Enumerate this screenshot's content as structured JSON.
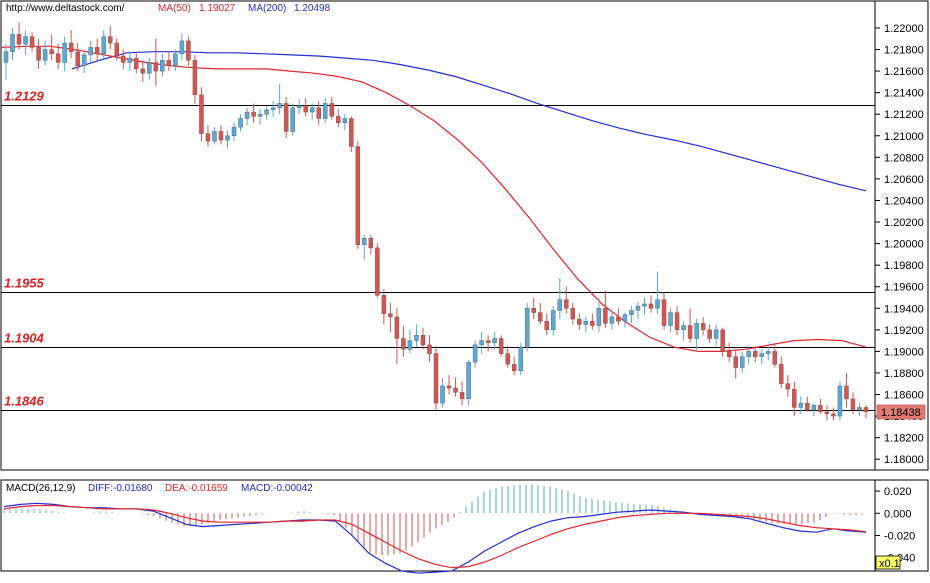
{
  "header": {
    "url": "http://www.deltastock.com/",
    "ma50_label": "MA(50)",
    "ma50_value": "1.19027",
    "ma200_label": "MA(200)",
    "ma200_value": "1.20498"
  },
  "colors": {
    "bull_candle": "#5aa9d6",
    "bear_candle": "#d9534f",
    "ma50": "#e8242a",
    "ma200": "#1f2fd8",
    "level_label": "#e02020",
    "price_tag_bg": "#e07a74",
    "macd_diff": "#1f2fd8",
    "macd_dea": "#e8242a",
    "hist_pos": "#5aa9d6",
    "hist_neg": "#d9534f"
  },
  "price_axis": {
    "ticks": [
      "1.22000",
      "1.21800",
      "1.21600",
      "1.21400",
      "1.21200",
      "1.21000",
      "1.20800",
      "1.20600",
      "1.20400",
      "1.20200",
      "1.20000",
      "1.19800",
      "1.19600",
      "1.19400",
      "1.19200",
      "1.19000",
      "1.18800",
      "1.18600",
      "1.18400",
      "1.18200",
      "1.18000"
    ],
    "current_price": "1.18438"
  },
  "levels": [
    {
      "label": "1.2129",
      "value": 1.2129
    },
    {
      "label": "1.1955",
      "value": 1.1955
    },
    {
      "label": "1.1904",
      "value": 1.1904
    },
    {
      "label": "1.1846",
      "value": 1.1846
    }
  ],
  "macd_panel": {
    "title": "MACD(26,12,9)",
    "diff_text": "DIFF:-0.01680",
    "dea_text": "DEA:-0.01659",
    "macd_text": "MACD:-0.00042",
    "ticks": [
      "0.020",
      "0.000",
      "-0.020",
      "-0.040"
    ],
    "scale_badge": "x0.1"
  },
  "chart_data": [
    {
      "type": "candlestick",
      "title": "",
      "ylim": [
        1.179,
        1.2225
      ],
      "candles": [
        [
          1.2168,
          1.2185,
          1.2152,
          1.2178
        ],
        [
          1.2178,
          1.22,
          1.217,
          1.2194
        ],
        [
          1.2194,
          1.2205,
          1.218,
          1.2185
        ],
        [
          1.2185,
          1.2198,
          1.2175,
          1.2192
        ],
        [
          1.2192,
          1.2196,
          1.2178,
          1.2182
        ],
        [
          1.2182,
          1.219,
          1.2162,
          1.217
        ],
        [
          1.217,
          1.2188,
          1.2165,
          1.218
        ],
        [
          1.218,
          1.2194,
          1.217,
          1.2176
        ],
        [
          1.2176,
          1.2185,
          1.2162,
          1.2168
        ],
        [
          1.2168,
          1.2192,
          1.216,
          1.2186
        ],
        [
          1.2186,
          1.2198,
          1.2172,
          1.2178
        ],
        [
          1.2178,
          1.2186,
          1.216,
          1.2165
        ],
        [
          1.2165,
          1.218,
          1.2158,
          1.2175
        ],
        [
          1.2175,
          1.2188,
          1.2168,
          1.2182
        ],
        [
          1.2182,
          1.219,
          1.217,
          1.2176
        ],
        [
          1.2176,
          1.2198,
          1.2172,
          1.2192
        ],
        [
          1.2192,
          1.2202,
          1.218,
          1.2186
        ],
        [
          1.2186,
          1.219,
          1.217,
          1.2174
        ],
        [
          1.2174,
          1.218,
          1.2162,
          1.2168
        ],
        [
          1.2168,
          1.2178,
          1.216,
          1.2172
        ],
        [
          1.2172,
          1.2178,
          1.2158,
          1.2162
        ],
        [
          1.2162,
          1.217,
          1.215,
          1.2158
        ],
        [
          1.2158,
          1.2172,
          1.2152,
          1.2168
        ],
        [
          1.2168,
          1.219,
          1.2146,
          1.216
        ],
        [
          1.216,
          1.2176,
          1.2155,
          1.217
        ],
        [
          1.217,
          1.2178,
          1.216,
          1.2165
        ],
        [
          1.2165,
          1.218,
          1.216,
          1.2176
        ],
        [
          1.2176,
          1.2195,
          1.217,
          1.2188
        ],
        [
          1.2188,
          1.2192,
          1.2165,
          1.217
        ],
        [
          1.217,
          1.2175,
          1.213,
          1.2138
        ],
        [
          1.2138,
          1.2145,
          1.2095,
          1.2102
        ],
        [
          1.2102,
          1.211,
          1.209,
          1.2095
        ],
        [
          1.2095,
          1.2108,
          1.2092,
          1.2104
        ],
        [
          1.2104,
          1.211,
          1.2092,
          1.2096
        ],
        [
          1.2096,
          1.2105,
          1.2088,
          1.21
        ],
        [
          1.21,
          1.2112,
          1.2095,
          1.2108
        ],
        [
          1.2108,
          1.212,
          1.2104,
          1.2116
        ],
        [
          1.2116,
          1.2126,
          1.211,
          1.2122
        ],
        [
          1.2122,
          1.213,
          1.2112,
          1.2118
        ],
        [
          1.2118,
          1.2125,
          1.211,
          1.212
        ],
        [
          1.212,
          1.2128,
          1.2115,
          1.2124
        ],
        [
          1.2124,
          1.2132,
          1.2118,
          1.2126
        ],
        [
          1.2126,
          1.2148,
          1.212,
          1.213
        ],
        [
          1.213,
          1.2136,
          1.2098,
          1.2104
        ],
        [
          1.2104,
          1.213,
          1.21,
          1.2126
        ],
        [
          1.2126,
          1.2134,
          1.212,
          1.2128
        ],
        [
          1.2128,
          1.2135,
          1.2118,
          1.2122
        ],
        [
          1.2122,
          1.213,
          1.2115,
          1.2126
        ],
        [
          1.2126,
          1.2132,
          1.211,
          1.2116
        ],
        [
          1.2116,
          1.2135,
          1.2112,
          1.213
        ],
        [
          1.213,
          1.2136,
          1.2115,
          1.2118
        ],
        [
          1.2118,
          1.2125,
          1.2108,
          1.2112
        ],
        [
          1.2112,
          1.212,
          1.2105,
          1.2116
        ],
        [
          1.2116,
          1.2118,
          1.2085,
          1.209
        ],
        [
          1.209,
          1.2095,
          1.1995,
          1.1999
        ],
        [
          1.1999,
          1.2008,
          1.1985,
          1.2005
        ],
        [
          1.2005,
          1.2008,
          1.199,
          1.1996
        ],
        [
          1.1996,
          1.2,
          1.195,
          1.1952
        ],
        [
          1.1952,
          1.1958,
          1.1925,
          1.1935
        ],
        [
          1.1935,
          1.1945,
          1.1918,
          1.1932
        ],
        [
          1.1932,
          1.194,
          1.1888,
          1.1912
        ],
        [
          1.1912,
          1.1924,
          1.1895,
          1.1902
        ],
        [
          1.1902,
          1.192,
          1.1898,
          1.191
        ],
        [
          1.191,
          1.1925,
          1.1904,
          1.1915
        ],
        [
          1.1915,
          1.1922,
          1.1902,
          1.1906
        ],
        [
          1.1906,
          1.1915,
          1.189,
          1.1898
        ],
        [
          1.1898,
          1.1905,
          1.1845,
          1.1852
        ],
        [
          1.1852,
          1.1875,
          1.1848,
          1.1868
        ],
        [
          1.1868,
          1.1878,
          1.186,
          1.1866
        ],
        [
          1.1866,
          1.1876,
          1.1858,
          1.1862
        ],
        [
          1.1862,
          1.1872,
          1.185,
          1.1856
        ],
        [
          1.1856,
          1.1892,
          1.185,
          1.189
        ],
        [
          1.189,
          1.191,
          1.1885,
          1.1906
        ],
        [
          1.1906,
          1.1918,
          1.1898,
          1.191
        ],
        [
          1.191,
          1.1915,
          1.19,
          1.1908
        ],
        [
          1.1908,
          1.1918,
          1.1902,
          1.1912
        ],
        [
          1.1912,
          1.1915,
          1.1895,
          1.1898
        ],
        [
          1.1898,
          1.1905,
          1.1885,
          1.1888
        ],
        [
          1.1888,
          1.1895,
          1.1878,
          1.1882
        ],
        [
          1.1882,
          1.1908,
          1.1878,
          1.1904
        ],
        [
          1.1904,
          1.1945,
          1.19,
          1.194
        ],
        [
          1.194,
          1.195,
          1.193,
          1.1936
        ],
        [
          1.1936,
          1.1945,
          1.1925,
          1.1928
        ],
        [
          1.1928,
          1.1935,
          1.1915,
          1.192
        ],
        [
          1.192,
          1.1942,
          1.1915,
          1.1938
        ],
        [
          1.1938,
          1.1968,
          1.193,
          1.1948
        ],
        [
          1.1948,
          1.196,
          1.1935,
          1.194
        ],
        [
          1.194,
          1.1945,
          1.1925,
          1.193
        ],
        [
          1.193,
          1.1935,
          1.192,
          1.1925
        ],
        [
          1.1925,
          1.1932,
          1.1918,
          1.1928
        ],
        [
          1.1928,
          1.1935,
          1.192,
          1.1924
        ],
        [
          1.1924,
          1.195,
          1.1918,
          1.194
        ],
        [
          1.194,
          1.1956,
          1.1922,
          1.1926
        ],
        [
          1.1926,
          1.1938,
          1.192,
          1.1932
        ],
        [
          1.1932,
          1.194,
          1.1924,
          1.1928
        ],
        [
          1.1928,
          1.1936,
          1.1922,
          1.1934
        ],
        [
          1.1934,
          1.1942,
          1.1926,
          1.1938
        ],
        [
          1.1938,
          1.1946,
          1.193,
          1.1942
        ],
        [
          1.1942,
          1.195,
          1.1934,
          1.1944
        ],
        [
          1.1944,
          1.1952,
          1.1936,
          1.194
        ],
        [
          1.194,
          1.1974,
          1.1935,
          1.1948
        ],
        [
          1.1948,
          1.1955,
          1.192,
          1.1924
        ],
        [
          1.1924,
          1.194,
          1.1918,
          1.1936
        ],
        [
          1.1936,
          1.1942,
          1.1915,
          1.192
        ],
        [
          1.192,
          1.1928,
          1.191,
          1.1924
        ],
        [
          1.1924,
          1.194,
          1.1908,
          1.1912
        ],
        [
          1.1912,
          1.193,
          1.19,
          1.1926
        ],
        [
          1.1926,
          1.1932,
          1.1915,
          1.192
        ],
        [
          1.192,
          1.1925,
          1.1908,
          1.1912
        ],
        [
          1.1912,
          1.1925,
          1.1905,
          1.192
        ],
        [
          1.192,
          1.1922,
          1.1895,
          1.19
        ],
        [
          1.19,
          1.1908,
          1.189,
          1.1895
        ],
        [
          1.1895,
          1.1902,
          1.1875,
          1.1885
        ],
        [
          1.1885,
          1.19,
          1.188,
          1.1895
        ],
        [
          1.1895,
          1.1905,
          1.1888,
          1.19
        ],
        [
          1.19,
          1.1905,
          1.189,
          1.1895
        ],
        [
          1.1895,
          1.1902,
          1.1888,
          1.1898
        ],
        [
          1.1898,
          1.1905,
          1.1892,
          1.19
        ],
        [
          1.19,
          1.1906,
          1.1885,
          1.1888
        ],
        [
          1.1888,
          1.1895,
          1.1866,
          1.187
        ],
        [
          1.187,
          1.1878,
          1.1858,
          1.1865
        ],
        [
          1.1865,
          1.1872,
          1.184,
          1.1848
        ],
        [
          1.1848,
          1.1858,
          1.1842,
          1.1852
        ],
        [
          1.1852,
          1.1858,
          1.1844,
          1.1846
        ],
        [
          1.1846,
          1.1852,
          1.184,
          1.185
        ],
        [
          1.185,
          1.1856,
          1.1842,
          1.1844
        ],
        [
          1.1844,
          1.185,
          1.1836,
          1.1842
        ],
        [
          1.1842,
          1.1848,
          1.1836,
          1.184
        ],
        [
          1.184,
          1.1872,
          1.1836,
          1.1868
        ],
        [
          1.1868,
          1.188,
          1.1848,
          1.1856
        ],
        [
          1.1856,
          1.1862,
          1.1842,
          1.1846
        ],
        [
          1.1846,
          1.1852,
          1.184,
          1.1848
        ],
        [
          1.1848,
          1.185,
          1.1838,
          1.1844
        ]
      ],
      "ma50": [
        1.2182,
        1.2183,
        1.2183,
        1.218,
        1.2176,
        1.2172,
        1.2168,
        1.2165,
        1.2163,
        1.2162,
        1.2162,
        1.2162,
        1.216,
        1.2158,
        1.2155,
        1.215,
        1.214,
        1.2128,
        1.2114,
        1.2096,
        1.2075,
        1.205,
        1.2023,
        1.1994,
        1.1967,
        1.1944,
        1.1927,
        1.1913,
        1.1904,
        1.19,
        1.19,
        1.1902,
        1.1906,
        1.191,
        1.1911,
        1.191,
        1.1904
      ],
      "ma200": [
        1.2162,
        1.217,
        1.2177,
        1.2178,
        1.2178,
        1.2177,
        1.2177,
        1.2176,
        1.2175,
        1.2174,
        1.2172,
        1.217,
        1.2166,
        1.2161,
        1.2155,
        1.2147,
        1.2139,
        1.213,
        1.2122,
        1.2114,
        1.2107,
        1.2101,
        1.2096,
        1.209,
        1.2083,
        1.2076,
        1.2069,
        1.2062,
        1.2055,
        1.2049
      ],
      "macd_ylim": [
        -0.052,
        0.03
      ],
      "macd_diff": [
        0.006,
        0.008,
        0.009,
        0.008,
        0.006,
        0.005,
        0.005,
        0.004,
        0.004,
        0.002,
        -0.004,
        -0.01,
        -0.012,
        -0.011,
        -0.01,
        -0.009,
        -0.008,
        -0.007,
        -0.006,
        -0.006,
        -0.007,
        -0.02,
        -0.036,
        -0.045,
        -0.052,
        -0.054,
        -0.053,
        -0.052,
        -0.044,
        -0.034,
        -0.026,
        -0.018,
        -0.012,
        -0.007,
        -0.004,
        -0.003,
        -0.001,
        0.001,
        0.002,
        0.003,
        0.002,
        0.001,
        -0.001,
        -0.002,
        -0.003,
        -0.005,
        -0.009,
        -0.013,
        -0.016,
        -0.017,
        -0.014,
        -0.016,
        -0.017
      ],
      "macd_dea": [
        0.004,
        0.006,
        0.007,
        0.007,
        0.006,
        0.005,
        0.004,
        0.004,
        0.004,
        0.003,
        0.0,
        -0.004,
        -0.007,
        -0.008,
        -0.008,
        -0.008,
        -0.008,
        -0.007,
        -0.007,
        -0.006,
        -0.006,
        -0.01,
        -0.018,
        -0.026,
        -0.034,
        -0.041,
        -0.046,
        -0.049,
        -0.048,
        -0.044,
        -0.038,
        -0.031,
        -0.025,
        -0.019,
        -0.014,
        -0.01,
        -0.007,
        -0.004,
        -0.002,
        -0.001,
        0.0,
        0.0,
        0.0,
        -0.001,
        -0.002,
        -0.003,
        -0.005,
        -0.008,
        -0.011,
        -0.013,
        -0.014,
        -0.015,
        -0.0166
      ]
    }
  ]
}
